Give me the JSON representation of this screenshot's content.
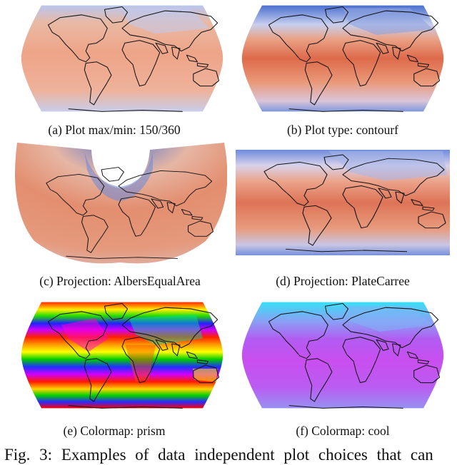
{
  "panels": [
    {
      "id": "a",
      "caption": "(a) Plot max/min: 150/360",
      "projection": "Robinson",
      "colormap": "coolwarm"
    },
    {
      "id": "b",
      "caption": "(b) Plot type: contourf",
      "projection": "Robinson",
      "colormap": "coolwarm"
    },
    {
      "id": "c",
      "caption": "(c) Projection: AlbersEqualArea",
      "projection": "AlbersEqualArea",
      "colormap": "coolwarm"
    },
    {
      "id": "d",
      "caption": "(d) Projection: PlateCarree",
      "projection": "PlateCarree",
      "colormap": "coolwarm"
    },
    {
      "id": "e",
      "caption": "(e) Colormap: prism",
      "projection": "Robinson",
      "colormap": "prism"
    },
    {
      "id": "f",
      "caption": "(f) Colormap: cool",
      "projection": "Robinson",
      "colormap": "cool"
    }
  ],
  "figure_caption": "Fig. 3: Examples of data independent plot choices that can",
  "colors": {
    "warm": "#e88b6d",
    "cool_blue": "#5b7fd6",
    "cool_magenta": "#c452f0",
    "cool_cyan": "#3fd9f5",
    "coastline": "#111111"
  }
}
